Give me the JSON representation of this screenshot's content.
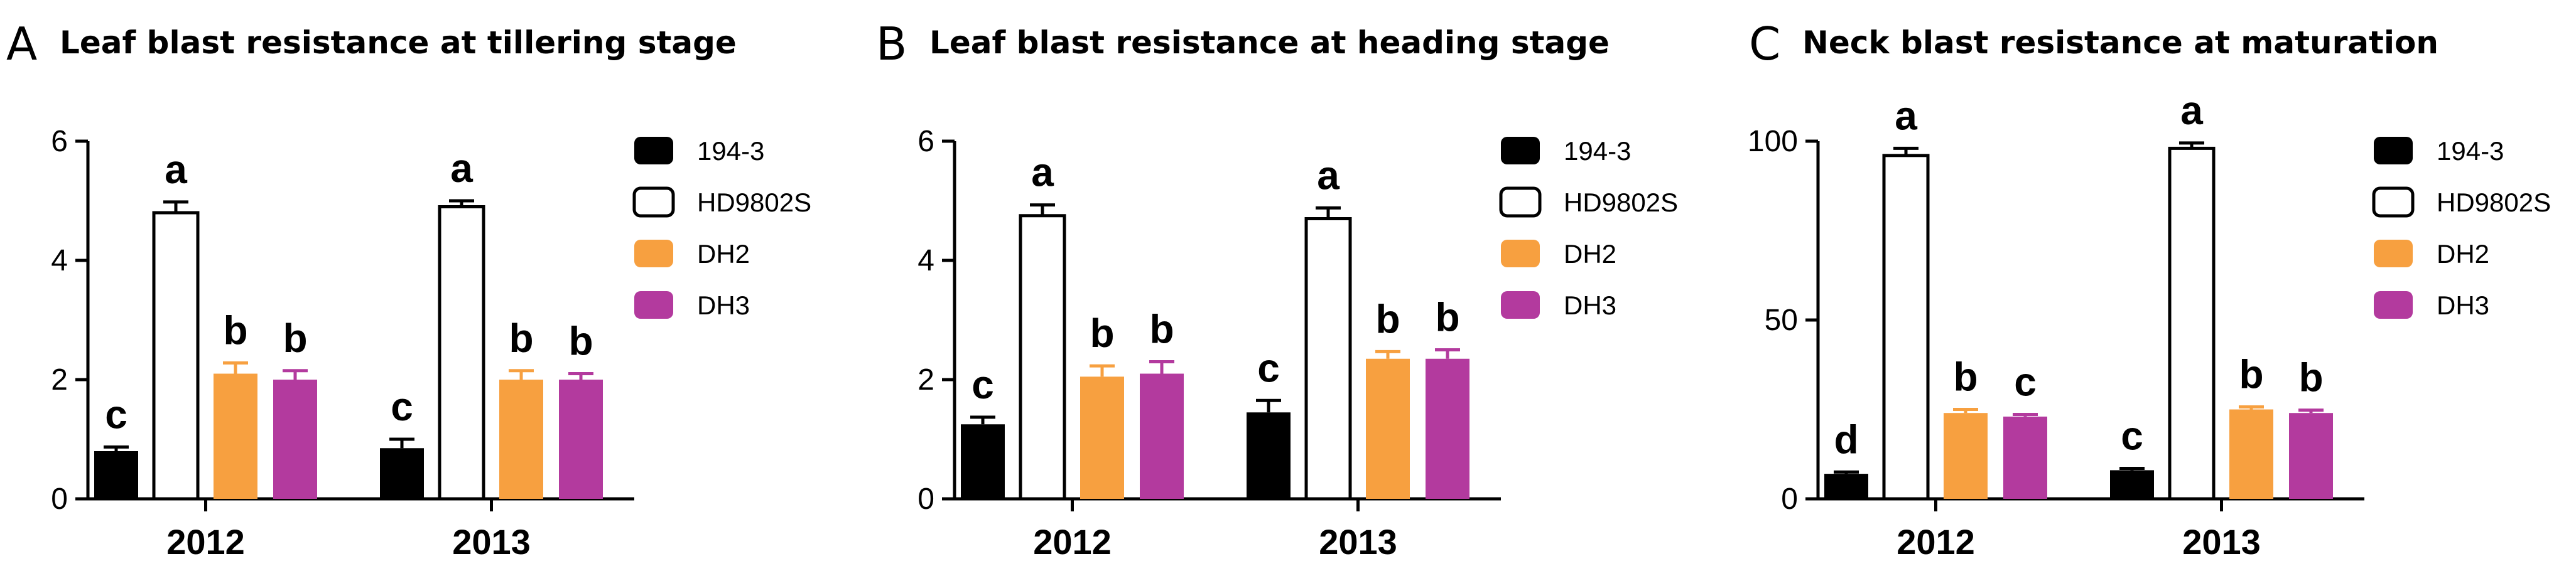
{
  "colors": {
    "194-3": "#000000",
    "HD9802S": "#ffffff",
    "DH2": "#F7A040",
    "DH3": "#B33A9E"
  },
  "chart_data": [
    {
      "type": "bar",
      "panel": "A",
      "title": "Leaf blast resistance at tillering stage",
      "xlabel": "",
      "ylabel": "",
      "ylim": [
        0,
        6
      ],
      "yticks": [
        "0",
        "2",
        "4",
        "6"
      ],
      "categories": [
        "2012",
        "2013"
      ],
      "legend": "right",
      "series": [
        {
          "name": "194-3",
          "values": [
            0.8,
            0.85
          ],
          "errors": [
            0.07,
            0.15
          ],
          "letters": [
            "c",
            "c"
          ]
        },
        {
          "name": "HD9802S",
          "values": [
            4.8,
            4.9
          ],
          "errors": [
            0.18,
            0.1
          ],
          "letters": [
            "a",
            "a"
          ]
        },
        {
          "name": "DH2",
          "values": [
            2.1,
            2.0
          ],
          "errors": [
            0.18,
            0.15
          ],
          "letters": [
            "b",
            "b"
          ]
        },
        {
          "name": "DH3",
          "values": [
            2.0,
            2.0
          ],
          "errors": [
            0.15,
            0.1
          ],
          "letters": [
            "b",
            "b"
          ]
        }
      ]
    },
    {
      "type": "bar",
      "panel": "B",
      "title": "Leaf blast resistance at heading stage",
      "xlabel": "",
      "ylabel": "",
      "ylim": [
        0,
        6
      ],
      "yticks": [
        "0",
        "2",
        "4",
        "6"
      ],
      "categories": [
        "2012",
        "2013"
      ],
      "legend": "right",
      "series": [
        {
          "name": "194-3",
          "values": [
            1.25,
            1.45
          ],
          "errors": [
            0.12,
            0.2
          ],
          "letters": [
            "c",
            "c"
          ]
        },
        {
          "name": "HD9802S",
          "values": [
            4.75,
            4.7
          ],
          "errors": [
            0.18,
            0.18
          ],
          "letters": [
            "a",
            "a"
          ]
        },
        {
          "name": "DH2",
          "values": [
            2.05,
            2.35
          ],
          "errors": [
            0.18,
            0.12
          ],
          "letters": [
            "b",
            "b"
          ]
        },
        {
          "name": "DH3",
          "values": [
            2.1,
            2.35
          ],
          "errors": [
            0.2,
            0.15
          ],
          "letters": [
            "b",
            "b"
          ]
        }
      ]
    },
    {
      "type": "bar",
      "panel": "C",
      "title": "Neck blast resistance at maturation",
      "xlabel": "",
      "ylabel": "",
      "ylim": [
        0,
        100
      ],
      "yticks": [
        "0",
        "50",
        "100"
      ],
      "categories": [
        "2012",
        "2013"
      ],
      "legend": "right",
      "series": [
        {
          "name": "194-3",
          "values": [
            7,
            8
          ],
          "errors": [
            0.5,
            0.5
          ],
          "letters": [
            "d",
            "c"
          ]
        },
        {
          "name": "HD9802S",
          "values": [
            96,
            98
          ],
          "errors": [
            2,
            1.5
          ],
          "letters": [
            "a",
            "a"
          ]
        },
        {
          "name": "DH2",
          "values": [
            24,
            25
          ],
          "errors": [
            1,
            0.7
          ],
          "letters": [
            "b",
            "b"
          ]
        },
        {
          "name": "DH3",
          "values": [
            23,
            24
          ],
          "errors": [
            0.6,
            0.8
          ],
          "letters": [
            "c",
            "b"
          ]
        }
      ]
    }
  ]
}
